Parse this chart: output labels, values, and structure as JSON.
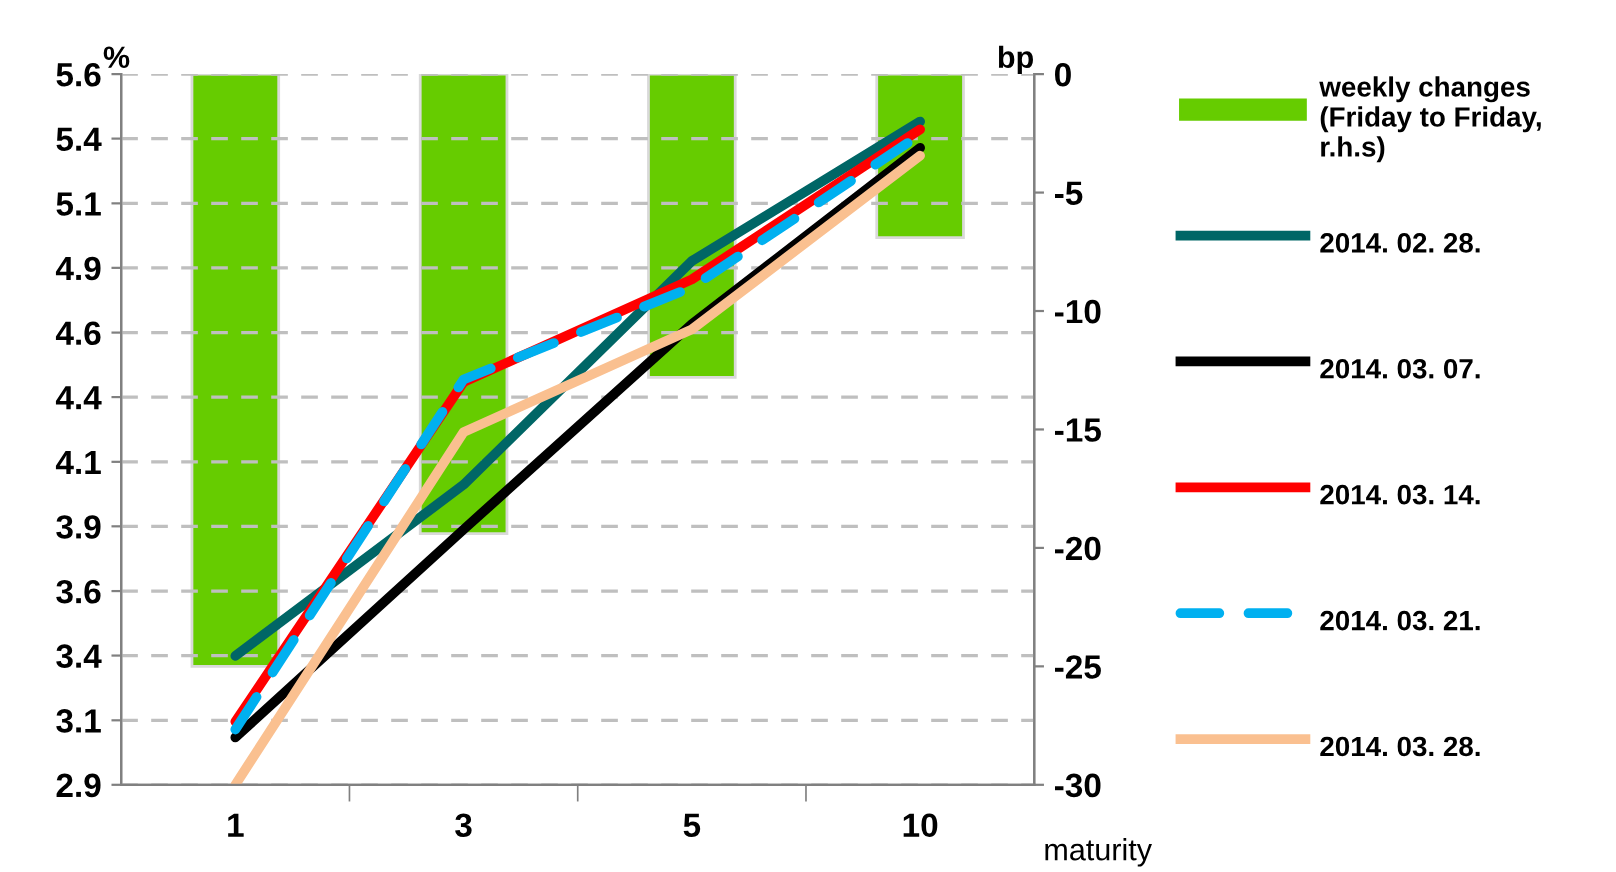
{
  "chart_data": {
    "type": "line",
    "xlabel": "maturity",
    "ylabel": "%",
    "y2label": "bp",
    "categories": [
      "1",
      "3",
      "5",
      "10"
    ],
    "series": [
      {
        "name": "weekly changes (Friday to Friday, r.h.s)",
        "type": "bar",
        "axis": "y2",
        "color": "#66cc00",
        "values": [
          -25,
          -19.4,
          -12.8,
          -6.9
        ]
      },
      {
        "name": "2014. 02. 28.",
        "color": "#006666",
        "values": [
          3.39,
          4.04,
          4.89,
          5.42
        ]
      },
      {
        "name": "2014. 03. 07.",
        "color": "#000000",
        "values": [
          3.08,
          3.87,
          4.65,
          5.32
        ]
      },
      {
        "name": "2014. 03. 14.",
        "color": "#ff0000",
        "values": [
          3.14,
          4.43,
          4.82,
          5.39
        ]
      },
      {
        "name": "2014. 03. 21.",
        "color": "#00b0f0",
        "line_style": "dashed",
        "values": [
          3.11,
          4.44,
          4.79,
          5.37
        ]
      },
      {
        "name": "2014. 03. 28.",
        "color": "#fac090",
        "values": [
          2.9,
          4.24,
          4.63,
          5.29
        ]
      }
    ],
    "ylim": [
      2.9,
      5.6
    ],
    "yticks": [
      2.9,
      {
        "value": 3.145,
        "label": "3.1"
      },
      {
        "value": 3.391,
        "label": "3.4"
      },
      {
        "value": 3.636,
        "label": "3.6"
      },
      {
        "value": 3.882,
        "label": "3.9"
      },
      {
        "value": 4.127,
        "label": "4.1"
      },
      {
        "value": 4.373,
        "label": "4.4"
      },
      {
        "value": 4.618,
        "label": "4.6"
      },
      {
        "value": 4.864,
        "label": "4.9"
      },
      {
        "value": 5.109,
        "label": "5.1"
      },
      {
        "value": 5.355,
        "label": "5.4"
      },
      5.6
    ],
    "y2lim": [
      -30,
      0
    ],
    "y2ticks": [
      -30,
      -25,
      -20,
      -15,
      -10,
      -5,
      0
    ],
    "grid": "y",
    "legend": "right",
    "line_style": "solid",
    "marker": "none"
  }
}
